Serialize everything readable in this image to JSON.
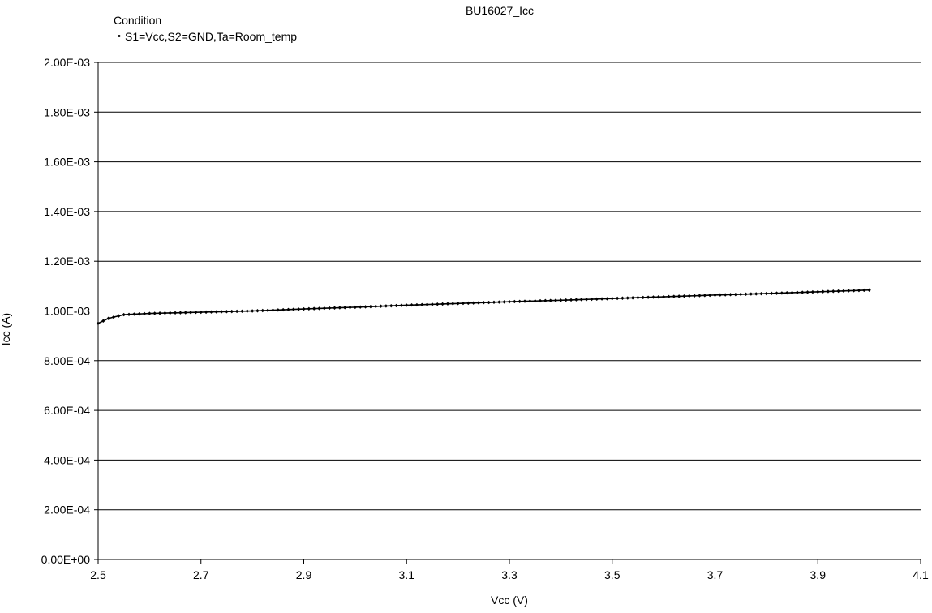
{
  "chart_data": {
    "type": "line",
    "title": "BU16027_Icc",
    "condition_heading": "Condition",
    "condition_text": "・S1=Vcc,S2=GND,Ta=Room_temp",
    "xlabel": "Vcc (V)",
    "ylabel": "Icc (A)",
    "xlim": [
      2.5,
      4.1
    ],
    "ylim": [
      0,
      0.002
    ],
    "x_ticks": [
      2.5,
      2.7,
      2.9,
      3.1,
      3.3,
      3.5,
      3.7,
      3.9,
      4.1
    ],
    "x_tick_labels": [
      "2.5",
      "2.7",
      "2.9",
      "3.1",
      "3.3",
      "3.5",
      "3.7",
      "3.9",
      "4.1"
    ],
    "y_ticks": [
      0,
      0.0002,
      0.0004,
      0.0006,
      0.0008,
      0.001,
      0.0012,
      0.0014,
      0.0016,
      0.0018,
      0.002
    ],
    "y_tick_labels": [
      "0.00E+00",
      "2.00E-04",
      "4.00E-04",
      "6.00E-04",
      "8.00E-04",
      "1.00E-03",
      "1.20E-03",
      "1.40E-03",
      "1.60E-03",
      "1.80E-03",
      "2.00E-03"
    ],
    "grid": {
      "horizontal": true,
      "vertical": false
    },
    "legend": "none",
    "series": [
      {
        "color": "#000000",
        "marker": "diamond",
        "x": [
          2.5,
          2.51,
          2.52,
          2.53,
          2.54,
          2.55,
          2.6,
          2.7,
          2.8,
          2.9,
          3.0,
          3.1,
          3.2,
          3.3,
          3.4,
          3.5,
          3.6,
          3.7,
          3.8,
          3.9,
          4.0
        ],
        "y": [
          0.00095,
          0.00096,
          0.00097,
          0.000975,
          0.00098,
          0.000985,
          0.00099,
          0.000995,
          0.001,
          0.001008,
          0.001015,
          0.001023,
          0.00103,
          0.001037,
          0.001043,
          0.00105,
          0.001057,
          0.001064,
          0.00107,
          0.001077,
          0.001084
        ]
      }
    ]
  }
}
